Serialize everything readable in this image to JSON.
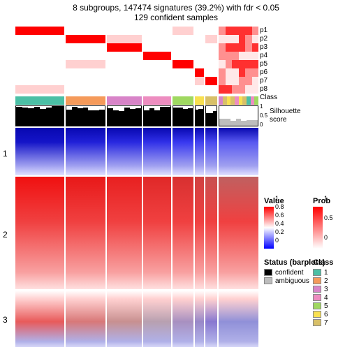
{
  "title": "8 subgroups, 147474 signatures (39.2%) with fdr < 0.05",
  "subtitle": "129 confident samples",
  "prob_labels": [
    "p1",
    "p2",
    "p3",
    "p4",
    "p5",
    "p6",
    "p7",
    "p8"
  ],
  "class_label": "Class",
  "sil_label": "Silhouette\nscore",
  "sil_ticks": [
    "1",
    "0.5",
    "0"
  ],
  "row_split_labels": [
    "1",
    "2",
    "3"
  ],
  "row_split_heights": [
    0.22,
    0.52,
    0.26
  ],
  "groups": [
    {
      "w": 0.21,
      "class_color": "#4bbfa5",
      "sil_mean": 0.95,
      "sil_conf": true,
      "band1": "#1414c8",
      "band2": "#f01010",
      "band3": "#e85a5a"
    },
    {
      "w": 0.17,
      "class_color": "#f59a5a",
      "sil_mean": 0.88,
      "sil_conf": true,
      "band1": "#2020d8",
      "band2": "#e81818",
      "band3": "#d87878"
    },
    {
      "w": 0.15,
      "class_color": "#d884c8",
      "sil_mean": 0.82,
      "sil_conf": true,
      "band1": "#2828e0",
      "band2": "#e82020",
      "band3": "#c89090"
    },
    {
      "w": 0.12,
      "class_color": "#ed8dc0",
      "sil_mean": 0.9,
      "sil_conf": true,
      "band1": "#3030e8",
      "band2": "#e02828",
      "band3": "#b8a0b0"
    },
    {
      "w": 0.09,
      "class_color": "#9fd860",
      "sil_mean": 0.85,
      "sil_conf": true,
      "band1": "#3838f0",
      "band2": "#d83030",
      "band3": "#a890c0"
    },
    {
      "w": 0.04,
      "class_color": "#f8e050",
      "sil_mean": 0.78,
      "sil_conf": true,
      "band1": "#4040f0",
      "band2": "#d04040",
      "band3": "#9888c8"
    },
    {
      "w": 0.05,
      "class_color": "#d8c068",
      "sil_mean": 0.7,
      "sil_conf": true,
      "band1": "#4848f0",
      "band2": "#c85050",
      "band3": "#8878d0"
    },
    {
      "w": 0.17,
      "class_color": "mix",
      "sil_mean": 0.35,
      "sil_conf": false,
      "band1": "#5858f0",
      "band2": "#c06060",
      "band3": "#9090d8"
    }
  ],
  "mix_colors": [
    "#4bbfa5",
    "#f59a5a",
    "#d884c8",
    "#ed8dc0",
    "#9fd860",
    "#f8e050",
    "#d8c068"
  ],
  "colors": {
    "red_hi": "#ff0000",
    "red_lo": "#ffffff",
    "blue": "#0000ff",
    "confident": "#000000",
    "ambiguous": "#bdbdbd"
  },
  "legends": {
    "value": {
      "title": "Value",
      "ticks": [
        "1",
        "0.8",
        "0.6",
        "0.4",
        "0.2",
        "0"
      ]
    },
    "prob": {
      "title": "Prob",
      "ticks": [
        "1",
        "0.5",
        "0"
      ]
    },
    "status": {
      "title": "Status (barplots)",
      "items": [
        {
          "c": "#000000",
          "l": "confident"
        },
        {
          "c": "#bdbdbd",
          "l": "ambiguous"
        }
      ]
    },
    "class": {
      "title": "Class",
      "items": [
        {
          "c": "#4bbfa5",
          "l": "1"
        },
        {
          "c": "#f59a5a",
          "l": "2"
        },
        {
          "c": "#d884c8",
          "l": "3"
        },
        {
          "c": "#ed8dc0",
          "l": "4"
        },
        {
          "c": "#9fd860",
          "l": "5"
        },
        {
          "c": "#f8e050",
          "l": "6"
        },
        {
          "c": "#d8c068",
          "l": "7"
        }
      ]
    }
  }
}
